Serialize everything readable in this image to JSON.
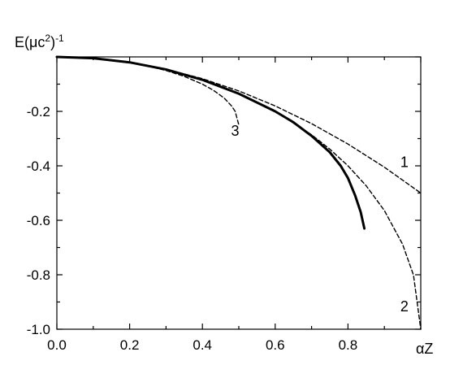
{
  "chart_data": {
    "type": "line",
    "xlabel": "αZ",
    "ylabel": "E(μc²)⁻¹",
    "ylabel_parts": {
      "base": "E(μc",
      "sup1": "2",
      "close": ")",
      "sup2": "-1"
    },
    "xlim": [
      0.0,
      1.0
    ],
    "ylim": [
      -1.0,
      0.0
    ],
    "x_ticks": [
      0.0,
      0.2,
      0.4,
      0.6,
      0.8
    ],
    "x_tick_labels": [
      "0.0",
      "0.2",
      "0.4",
      "0.6",
      "0.8"
    ],
    "y_ticks": [
      -1.0,
      -0.8,
      -0.6,
      -0.4,
      -0.2
    ],
    "y_tick_labels": [
      "-1.0",
      "-0.8",
      "-0.6",
      "-0.4",
      "-0.2"
    ],
    "grid": false,
    "legend": "none",
    "series": [
      {
        "label": "1",
        "style": "dashed",
        "x": [
          0.0,
          0.1,
          0.2,
          0.3,
          0.4,
          0.5,
          0.6,
          0.7,
          0.8,
          0.9,
          1.0
        ],
        "y": [
          0.0,
          -0.005,
          -0.02,
          -0.045,
          -0.08,
          -0.125,
          -0.18,
          -0.245,
          -0.32,
          -0.405,
          -0.5
        ]
      },
      {
        "label": "2",
        "style": "dashed",
        "x": [
          0.0,
          0.1,
          0.2,
          0.3,
          0.4,
          0.5,
          0.6,
          0.7,
          0.75,
          0.8,
          0.85,
          0.9,
          0.95,
          0.98,
          1.0
        ],
        "y": [
          0.0,
          -0.005,
          -0.0202,
          -0.0461,
          -0.0835,
          -0.134,
          -0.2,
          -0.2859,
          -0.3386,
          -0.4,
          -0.4732,
          -0.5641,
          -0.6878,
          -0.801,
          -1.0
        ]
      },
      {
        "label": "3",
        "style": "dashed",
        "x": [
          0.0,
          0.1,
          0.2,
          0.25,
          0.3,
          0.35,
          0.4,
          0.43,
          0.46,
          0.48,
          0.49,
          0.5
        ],
        "y": [
          0.0,
          -0.0051,
          -0.0209,
          -0.0335,
          -0.05,
          -0.0714,
          -0.1,
          -0.1224,
          -0.1515,
          -0.18,
          -0.2,
          -0.25
        ]
      },
      {
        "label": "",
        "style": "solid",
        "x": [
          0.0,
          0.1,
          0.2,
          0.3,
          0.4,
          0.5,
          0.6,
          0.65,
          0.7,
          0.75,
          0.78,
          0.8,
          0.82,
          0.835,
          0.845
        ],
        "y": [
          0.0,
          -0.005,
          -0.02,
          -0.046,
          -0.084,
          -0.135,
          -0.2,
          -0.24,
          -0.29,
          -0.35,
          -0.4,
          -0.445,
          -0.51,
          -0.57,
          -0.63
        ]
      }
    ],
    "curve_labels": [
      {
        "text": "1",
        "x": 0.955,
        "y": -0.405
      },
      {
        "text": "2",
        "x": 0.955,
        "y": -0.935
      },
      {
        "text": "3",
        "x": 0.49,
        "y": -0.29
      }
    ]
  }
}
